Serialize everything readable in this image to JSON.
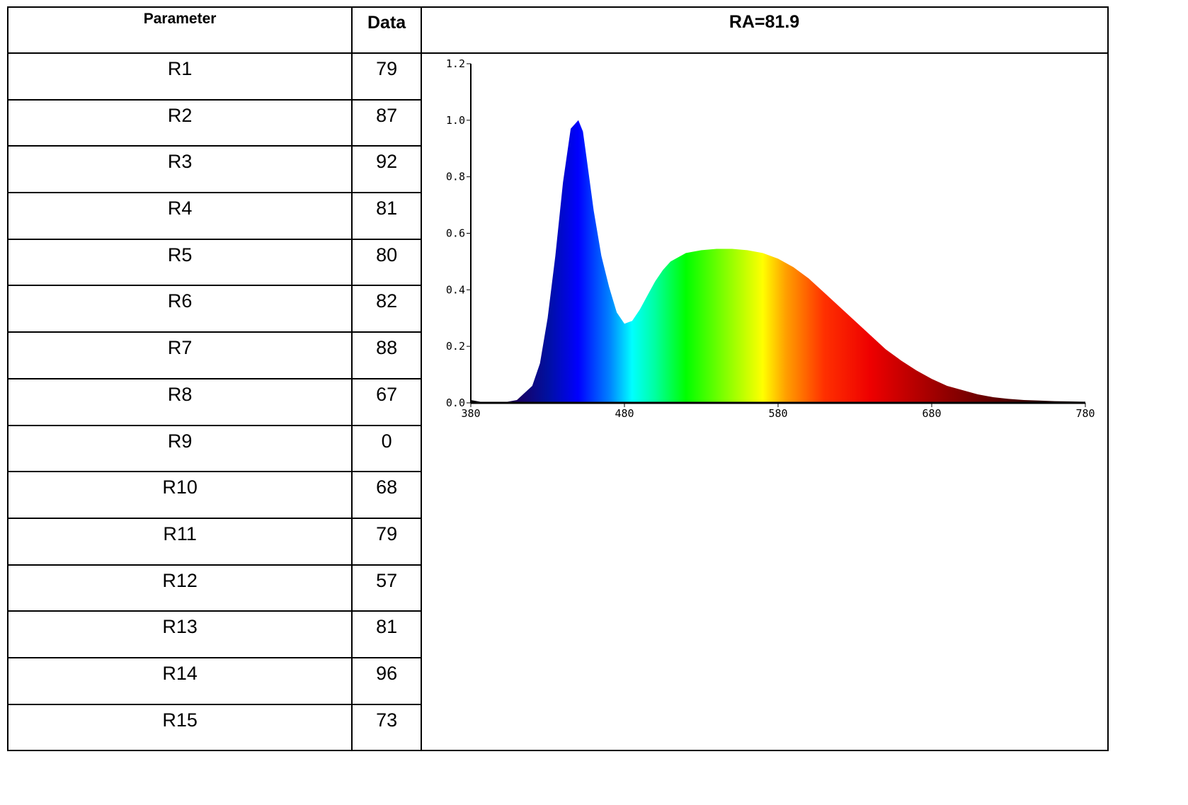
{
  "table": {
    "header_param": "Parameter",
    "header_data": "Data",
    "rows": [
      {
        "param": "R1",
        "value": "79"
      },
      {
        "param": "R2",
        "value": "87"
      },
      {
        "param": "R3",
        "value": "92"
      },
      {
        "param": "R4",
        "value": "81"
      },
      {
        "param": "R5",
        "value": "80"
      },
      {
        "param": "R6",
        "value": "82"
      },
      {
        "param": "R7",
        "value": "88"
      },
      {
        "param": "R8",
        "value": "67"
      },
      {
        "param": "R9",
        "value": "0"
      },
      {
        "param": "R10",
        "value": "68"
      },
      {
        "param": "R11",
        "value": "79"
      },
      {
        "param": "R12",
        "value": "57"
      },
      {
        "param": "R13",
        "value": "81"
      },
      {
        "param": "R14",
        "value": "96"
      },
      {
        "param": "R15",
        "value": "73"
      }
    ]
  },
  "chart_title": "RA=81.9",
  "chart_data": {
    "type": "area",
    "title": "",
    "xlabel": "",
    "ylabel": "",
    "xlim": [
      380,
      780
    ],
    "ylim": [
      0,
      1.2
    ],
    "xticks": [
      "380",
      "480",
      "580",
      "680",
      "780"
    ],
    "yticks": [
      "0.0",
      "0.2",
      "0.4",
      "0.6",
      "0.8",
      "1.0",
      "1.2"
    ],
    "grid": false,
    "fill": "visible-spectrum gradient",
    "x": [
      380,
      390,
      400,
      410,
      420,
      425,
      430,
      435,
      440,
      445,
      450,
      453,
      455,
      460,
      465,
      470,
      475,
      480,
      485,
      490,
      495,
      500,
      505,
      510,
      520,
      530,
      540,
      550,
      560,
      570,
      580,
      590,
      600,
      610,
      620,
      630,
      640,
      650,
      660,
      670,
      680,
      690,
      700,
      710,
      720,
      730,
      740,
      750,
      760,
      770,
      780
    ],
    "y": [
      0.01,
      0.0,
      0.0,
      0.01,
      0.06,
      0.14,
      0.3,
      0.52,
      0.78,
      0.97,
      1.0,
      0.96,
      0.88,
      0.68,
      0.52,
      0.41,
      0.32,
      0.28,
      0.29,
      0.33,
      0.38,
      0.43,
      0.47,
      0.5,
      0.53,
      0.54,
      0.545,
      0.545,
      0.54,
      0.53,
      0.51,
      0.48,
      0.44,
      0.39,
      0.34,
      0.29,
      0.24,
      0.19,
      0.15,
      0.115,
      0.085,
      0.06,
      0.045,
      0.03,
      0.02,
      0.014,
      0.01,
      0.008,
      0.006,
      0.005,
      0.004
    ]
  }
}
